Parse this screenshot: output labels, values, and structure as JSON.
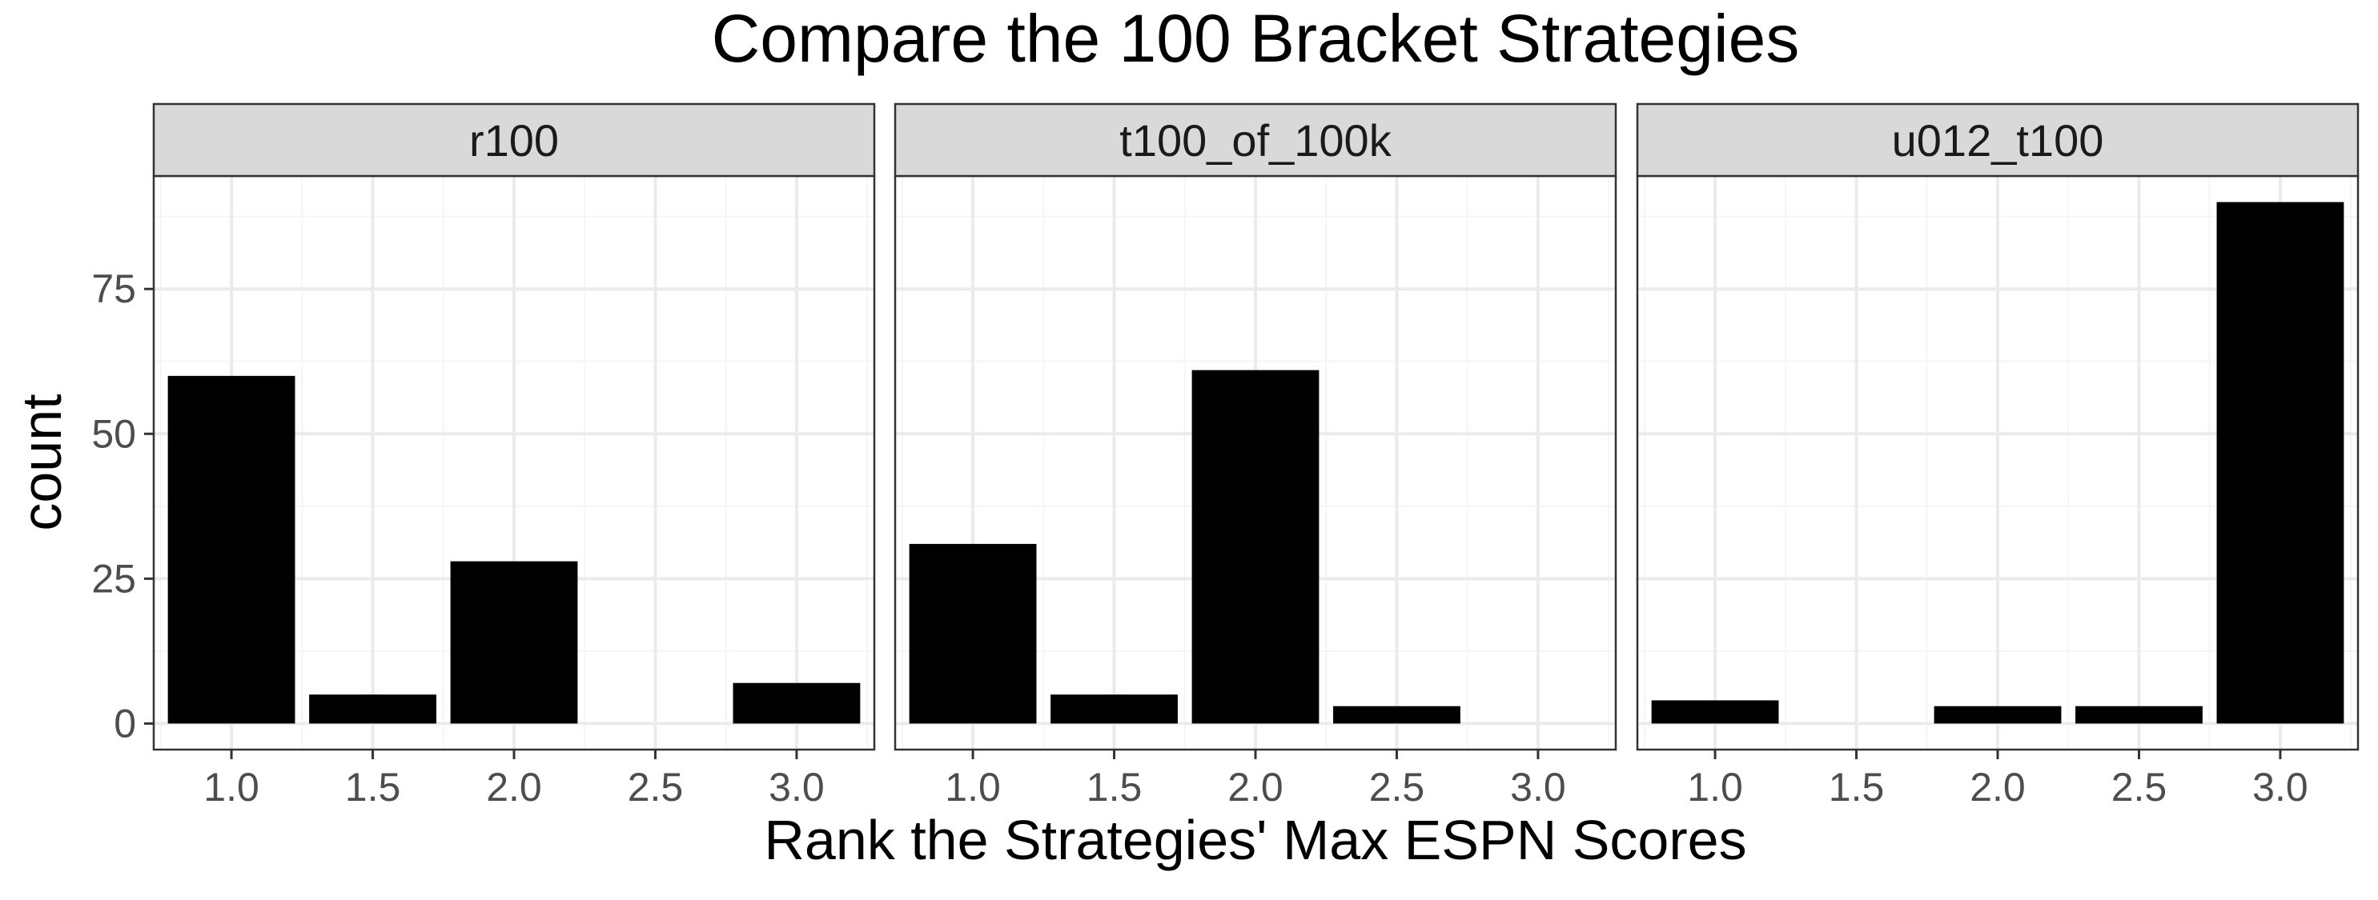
{
  "chart_data": {
    "type": "bar",
    "title": "Compare the 100 Bracket Strategies",
    "xlabel": "Rank the Strategies' Max ESPN Scores",
    "ylabel": "count",
    "x_ticks": [
      "1.0",
      "1.5",
      "2.0",
      "2.5",
      "3.0"
    ],
    "y_ticks": [
      "0",
      "25",
      "50",
      "75"
    ],
    "xlim": [
      0.725,
      3.275
    ],
    "ylim": [
      -4.5,
      94.5
    ],
    "bar_width": 0.45,
    "grid": true,
    "colors": {
      "bar": "#000000",
      "strip": "#d9d9d9",
      "grid_major": "#ebebeb",
      "grid_minor": "#f5f5f5",
      "panel_border": "#333333"
    },
    "panels": [
      {
        "name": "r100",
        "x": [
          1.0,
          1.5,
          2.0,
          2.5,
          3.0
        ],
        "values": [
          60,
          5,
          28,
          0,
          7
        ]
      },
      {
        "name": "t100_of_100k",
        "x": [
          1.0,
          1.5,
          2.0,
          2.5,
          3.0
        ],
        "values": [
          31,
          5,
          61,
          3,
          0
        ]
      },
      {
        "name": "u012_t100",
        "x": [
          1.0,
          1.5,
          2.0,
          2.5,
          3.0
        ],
        "values": [
          4,
          0,
          3,
          3,
          90
        ]
      }
    ]
  }
}
